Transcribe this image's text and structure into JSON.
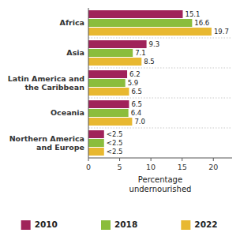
{
  "chart_data": {
    "type": "bar",
    "orientation": "horizontal",
    "categories": [
      "Africa",
      "Asia",
      "Latin America and\nthe Caribbean",
      "Oceania",
      "Northern America\nand Europe"
    ],
    "series": [
      {
        "name": "2010",
        "color": "#A0235A",
        "values": [
          15.1,
          9.3,
          6.2,
          6.5,
          2.5
        ],
        "value_labels": [
          "15.1",
          "9.3",
          "6.2",
          "6.5",
          "<2.5"
        ]
      },
      {
        "name": "2018",
        "color": "#8BBD3C",
        "values": [
          16.6,
          7.1,
          5.9,
          6.4,
          2.5
        ],
        "value_labels": [
          "16.6",
          "7.1",
          "5.9",
          "6.4",
          "<2.5"
        ]
      },
      {
        "name": "2022",
        "color": "#E8B830",
        "values": [
          19.7,
          8.5,
          6.5,
          7.0,
          2.5
        ],
        "value_labels": [
          "19.7",
          "8.5",
          "6.5",
          "7.0",
          "<2.5"
        ]
      }
    ],
    "xlabel": "Percentage\nundernourished",
    "xlim": [
      0,
      23
    ],
    "xticks": [
      0,
      5,
      10,
      15,
      20
    ],
    "data_labels": true,
    "grid": false,
    "legend": "bottom"
  }
}
